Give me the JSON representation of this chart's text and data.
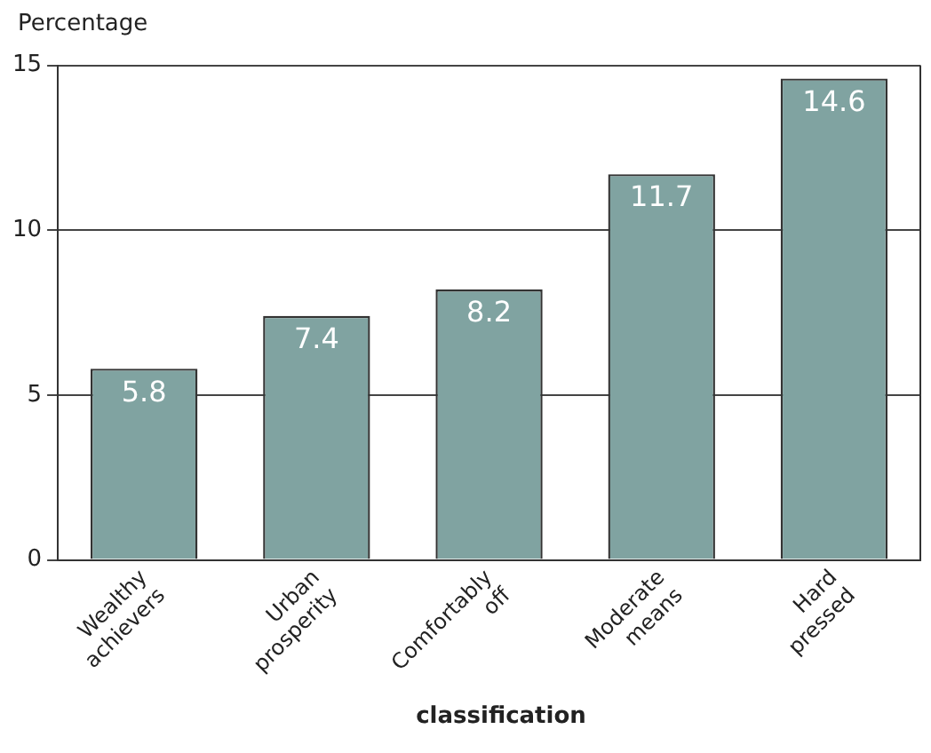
{
  "chart_data": {
    "type": "bar",
    "ylabel": "Percentage",
    "xlabel": "classification",
    "categories": [
      "Wealthy achievers",
      "Urban prosperity",
      "Comfortably off",
      "Moderate means",
      "Hard pressed"
    ],
    "values": [
      5.8,
      7.4,
      8.2,
      11.7,
      14.6
    ],
    "color": "#80a3a1",
    "ylim": [
      0,
      15
    ],
    "yticks": [
      0,
      5,
      10,
      15
    ],
    "grid": "y",
    "data_labels": true
  }
}
